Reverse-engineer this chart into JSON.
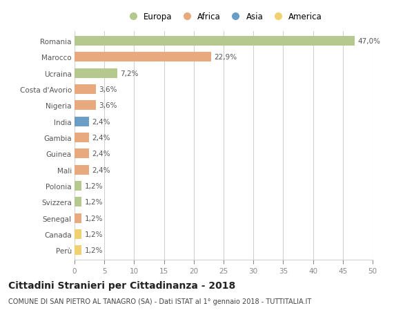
{
  "countries": [
    "Romania",
    "Marocco",
    "Ucraina",
    "Costa d'Avorio",
    "Nigeria",
    "India",
    "Gambia",
    "Guinea",
    "Mali",
    "Polonia",
    "Svizzera",
    "Senegal",
    "Canada",
    "Perù"
  ],
  "values": [
    47.0,
    22.9,
    7.2,
    3.6,
    3.6,
    2.4,
    2.4,
    2.4,
    2.4,
    1.2,
    1.2,
    1.2,
    1.2,
    1.2
  ],
  "labels": [
    "47,0%",
    "22,9%",
    "7,2%",
    "3,6%",
    "3,6%",
    "2,4%",
    "2,4%",
    "2,4%",
    "2,4%",
    "1,2%",
    "1,2%",
    "1,2%",
    "1,2%",
    "1,2%"
  ],
  "continents": [
    "Europa",
    "Africa",
    "Europa",
    "Africa",
    "Africa",
    "Asia",
    "Africa",
    "Africa",
    "Africa",
    "Europa",
    "Europa",
    "Africa",
    "America",
    "America"
  ],
  "colors": {
    "Europa": "#b5c98e",
    "Africa": "#e8a97e",
    "Asia": "#6b9ec7",
    "America": "#f0d070"
  },
  "legend_order": [
    "Europa",
    "Africa",
    "Asia",
    "America"
  ],
  "xlim": [
    0,
    50
  ],
  "xticks": [
    0,
    5,
    10,
    15,
    20,
    25,
    30,
    35,
    40,
    45,
    50
  ],
  "title": "Cittadini Stranieri per Cittadinanza - 2018",
  "subtitle": "COMUNE DI SAN PIETRO AL TANAGRO (SA) - Dati ISTAT al 1° gennaio 2018 - TUTTITALIA.IT",
  "bg_color": "#ffffff",
  "grid_color": "#d0d0d0",
  "bar_height": 0.6,
  "label_fontsize": 7.5,
  "tick_fontsize": 7.5,
  "title_fontsize": 10,
  "subtitle_fontsize": 7
}
